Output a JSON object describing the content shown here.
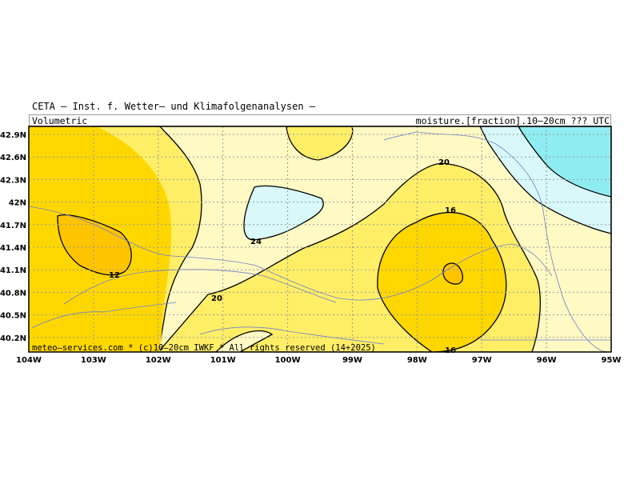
{
  "header": {
    "title": "CETA – Inst. f. Wetter– und Klimafolgenanalysen –",
    "left": "Volumetric",
    "right": "moisture.[fraction].10–20cm ??? UTC"
  },
  "footer": "meteo–services.com * (c)10–20cm IWKF * All rights reserved (14+2025)",
  "map": {
    "lon_ticks": [
      "104W",
      "103W",
      "102W",
      "101W",
      "100W",
      "99W",
      "98W",
      "97W",
      "96W",
      "95W"
    ],
    "lat_ticks": [
      "42.9N",
      "42.6N",
      "42.3N",
      "42N",
      "41.7N",
      "41.4N",
      "41.1N",
      "40.8N",
      "40.5N",
      "40.2N"
    ],
    "contour_labels": [
      {
        "text": "12"
      },
      {
        "text": "20"
      },
      {
        "text": "24"
      },
      {
        "text": "20"
      },
      {
        "text": "16"
      },
      {
        "text": "16"
      }
    ],
    "colors": {
      "lt12": "#ffc400",
      "12_16": "#ffd700",
      "16_20": "#ffee66",
      "20_24": "#fff9c4",
      "24_28": "#d8f8fa",
      "gt28": "#8eedf0",
      "grid": "#999999",
      "boundary": "#7080c8"
    }
  }
}
